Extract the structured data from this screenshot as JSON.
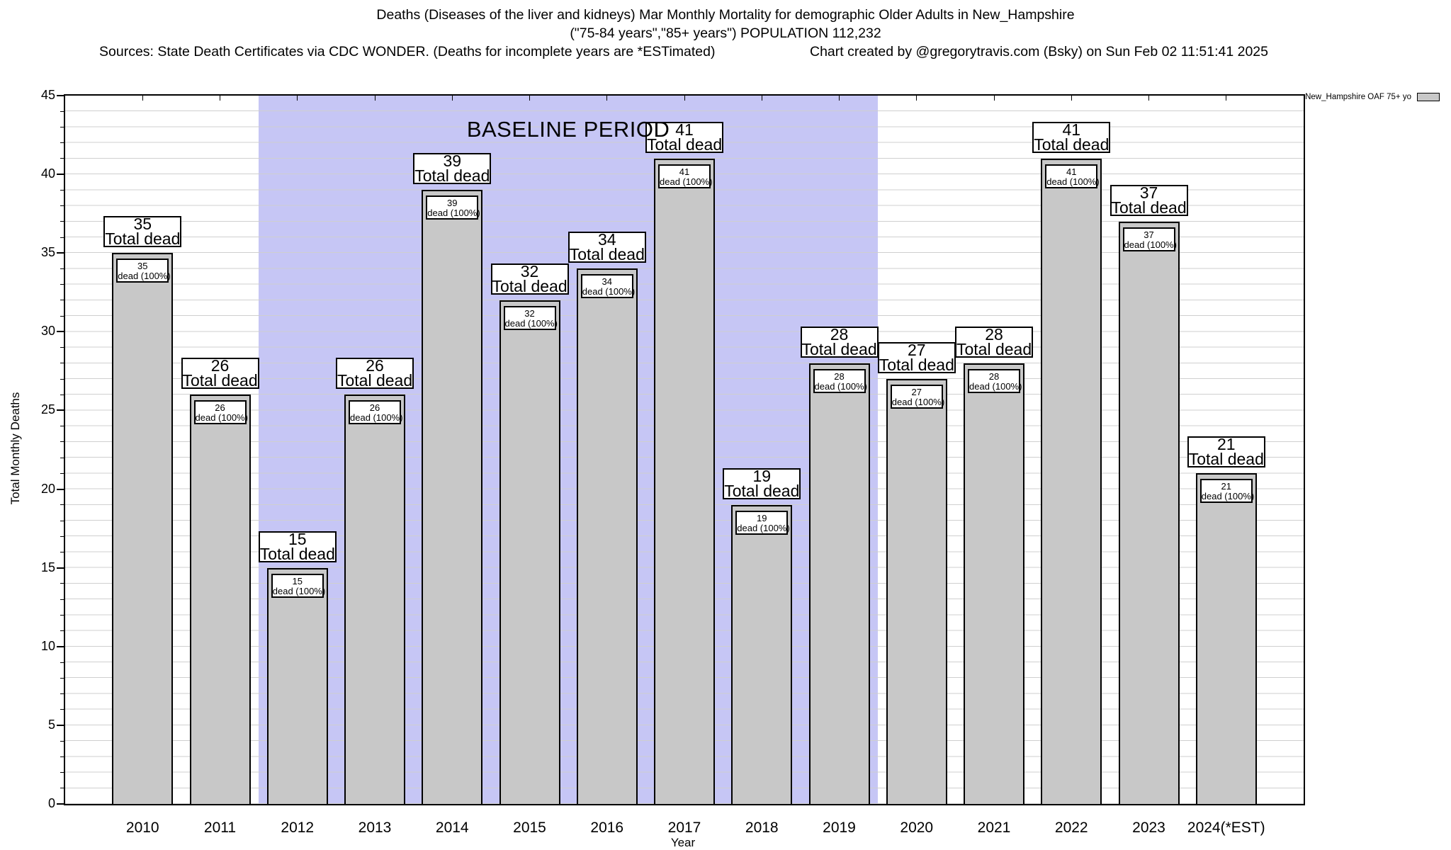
{
  "header": {
    "title_line1": "Deaths (Diseases of the liver and kidneys) Mar Monthly Mortality for demographic Older Adults in New_Hampshire",
    "title_line2": "(\"75-84 years\",\"85+ years\") POPULATION 112,232",
    "sources_left": "Sources: State Death Certificates via CDC WONDER. (Deaths for incomplete years are *ESTimated)",
    "credit_right": "Chart created by @gregorytravis.com (Bsky) on Sun Feb 02 11:51:41 2025"
  },
  "legend": {
    "label": "New_Hampshire OAF 75+ yo",
    "key_color": "#c8c8c8"
  },
  "chart_data": {
    "type": "bar",
    "title": "Deaths (Diseases of the liver and kidneys) Mar Monthly Mortality for demographic Older Adults in New_Hampshire (\"75-84 years\",\"85+ years\") POPULATION 112,232",
    "categories": [
      "2010",
      "2011",
      "2012",
      "2013",
      "2014",
      "2015",
      "2016",
      "2017",
      "2018",
      "2019",
      "2020",
      "2021",
      "2022",
      "2023",
      "2024(*EST)"
    ],
    "values": [
      35,
      26,
      15,
      26,
      39,
      32,
      34,
      41,
      19,
      28,
      27,
      28,
      41,
      37,
      21
    ],
    "bar_label_suffix": "Total dead",
    "bar_sublabel_suffix": "dead (100%)",
    "xlabel": "Year",
    "ylabel": "Total Monthly Deaths",
    "ylim": [
      0,
      45
    ],
    "ytick_labels": [
      0,
      5,
      10,
      15,
      20,
      25,
      30,
      35,
      40,
      45
    ],
    "minor_grid_step": 1,
    "grid": true,
    "bar_color": "#c8c8c8",
    "baseline_band": {
      "label": "BASELINE PERIOD",
      "start_category": "2012",
      "end_category": "2019",
      "color": "#c6c6f5"
    },
    "legend_position": "top-right"
  }
}
